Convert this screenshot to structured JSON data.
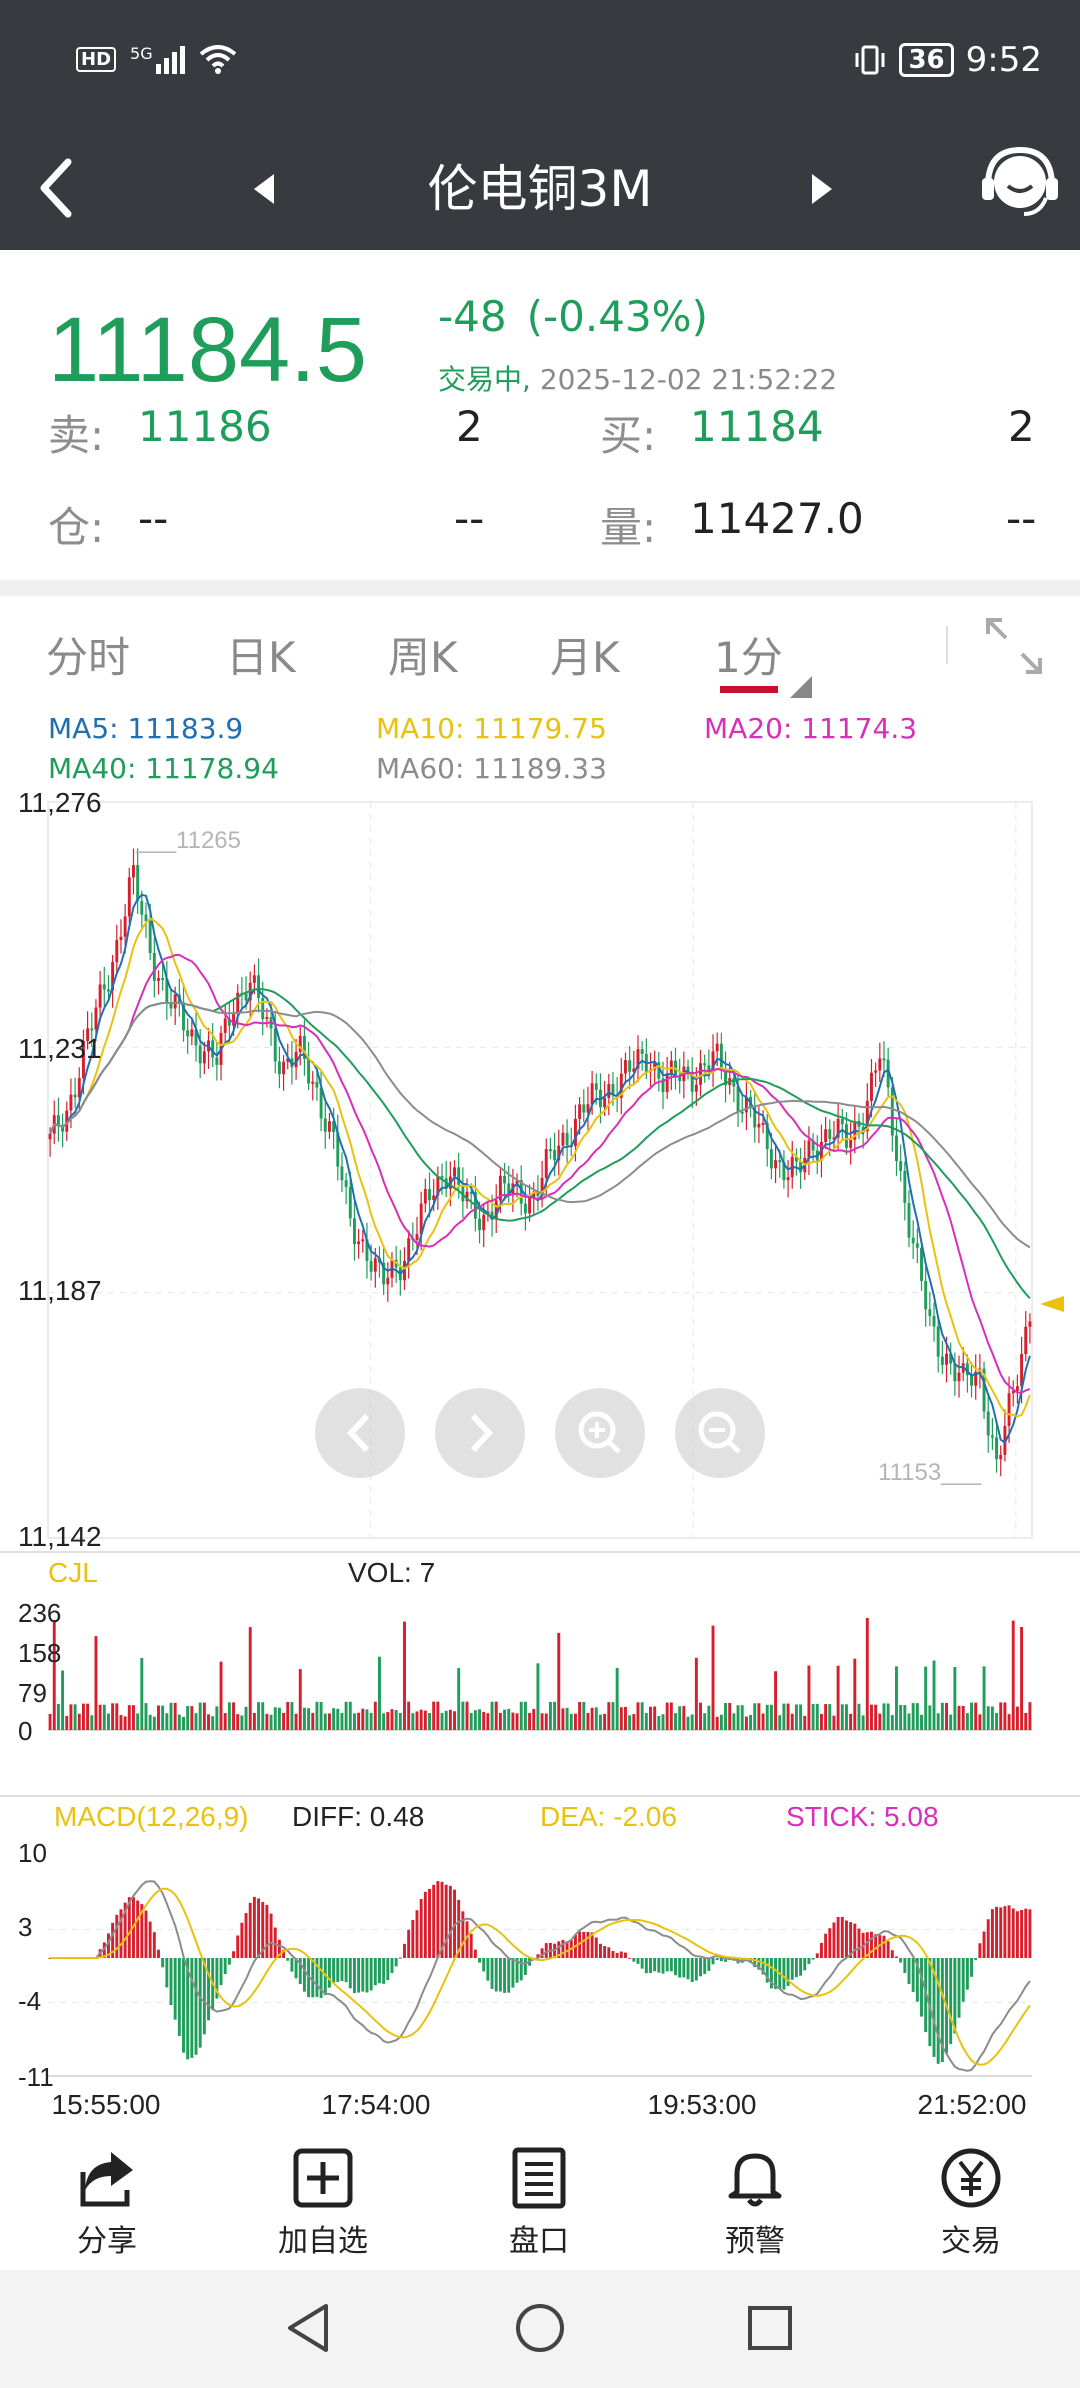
{
  "status_bar": {
    "network": "HD",
    "signal": "5G",
    "battery": "36",
    "time": "9:52"
  },
  "nav": {
    "title": "伦电铜3M"
  },
  "quote": {
    "price": "11184.5",
    "change": "-48",
    "change_pct": "(-0.43%)",
    "status": "交易中,",
    "datetime": "2025-12-02 21:52:22",
    "sell_label": "卖:",
    "sell_price": "11186",
    "sell_qty": "2",
    "buy_label": "买:",
    "buy_price": "11184",
    "buy_qty": "2",
    "oi_label": "仓:",
    "oi_value": "--",
    "oi_change": "--",
    "vol_label": "量:",
    "vol_value": "11427.0",
    "vol_change": "--"
  },
  "tabs": [
    "分时",
    "日K",
    "周K",
    "月K",
    "1分"
  ],
  "ma_legend": {
    "ma5": "MA5: 11183.9",
    "ma10": "MA10: 11179.75",
    "ma20": "MA20: 11174.3",
    "ma40": "MA40: 11178.94",
    "ma60": "MA60: 11189.33"
  },
  "colors": {
    "up": "#d81e2d",
    "down": "#1f9d5a",
    "ma5": "#1f6fb3",
    "ma10": "#e8c20f",
    "ma20": "#d82fb8",
    "ma40": "#1f9d5a",
    "ma60": "#8c8c8c"
  },
  "chart_data": {
    "type": "candlestick",
    "price_ticks": [
      "11,276",
      "11,231",
      "11,187",
      "11,142"
    ],
    "price_range": [
      11142,
      11276
    ],
    "high_mark": "11265",
    "low_mark": "11153",
    "vol_title": "CJL",
    "vol_value": "VOL: 7",
    "vol_ticks": [
      "236",
      "158",
      "79",
      "0"
    ],
    "macd_title": "MACD(12,26,9)",
    "diff": "DIFF: 0.48",
    "dea": "DEA: -2.06",
    "stick": "STICK: 5.08",
    "macd_ticks": [
      "10",
      "3",
      "-4",
      "-11"
    ],
    "x_labels": [
      "15:55:00",
      "17:54:00",
      "19:53:00",
      "21:52:00"
    ],
    "close_path": [
      11214,
      11220,
      11230,
      11240,
      11250,
      11262,
      11250,
      11240,
      11236,
      11232,
      11228,
      11240,
      11243,
      11236,
      11228,
      11230,
      11224,
      11215,
      11200,
      11195,
      11188,
      11192,
      11198,
      11205,
      11210,
      11203,
      11200,
      11205,
      11205,
      11204,
      11210,
      11215,
      11220,
      11222,
      11225,
      11227,
      11230,
      11225,
      11226,
      11227,
      11229,
      11225,
      11220,
      11214,
      11210,
      11208,
      11214,
      11216,
      11214,
      11220,
      11230,
      11212,
      11195,
      11180,
      11175,
      11170,
      11172,
      11155,
      11168,
      11184
    ]
  },
  "bottom_nav": [
    {
      "label": "分享",
      "icon": "share-icon"
    },
    {
      "label": "加自选",
      "icon": "add-watchlist-icon"
    },
    {
      "label": "盘口",
      "icon": "order-book-icon"
    },
    {
      "label": "预警",
      "icon": "bell-icon"
    },
    {
      "label": "交易",
      "icon": "yuan-trade-icon"
    }
  ]
}
